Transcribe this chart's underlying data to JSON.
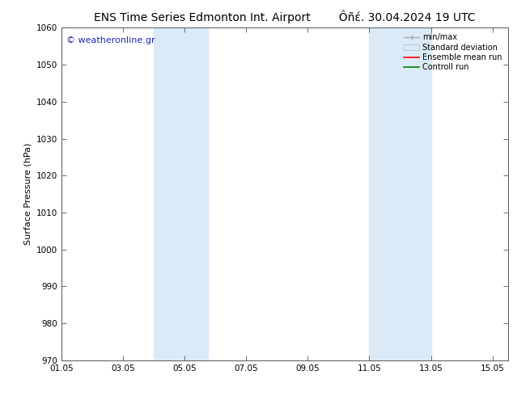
{
  "title_left": "ENS Time Series Edmonton Int. Airport",
  "title_right": "Ôñέ. 30.04.2024 19 UTC",
  "ylabel": "Surface Pressure (hPa)",
  "ylim": [
    970,
    1060
  ],
  "yticks": [
    970,
    980,
    990,
    1000,
    1010,
    1020,
    1030,
    1040,
    1050,
    1060
  ],
  "xlim_start": 0,
  "xlim_end": 14.5,
  "xtick_positions": [
    0,
    2,
    4,
    6,
    8,
    10,
    12,
    14
  ],
  "xtick_labels": [
    "01.05",
    "03.05",
    "05.05",
    "07.05",
    "09.05",
    "11.05",
    "13.05",
    "15.05"
  ],
  "shaded_bands": [
    {
      "xmin": 3.0,
      "xmax": 4.75
    },
    {
      "xmin": 10.0,
      "xmax": 12.0
    }
  ],
  "band_color": "#daeaf7",
  "watermark_text": "© weatheronline.gr",
  "watermark_color": "#2222bb",
  "legend_items": [
    {
      "label": "min/max"
    },
    {
      "label": "Standard deviation"
    },
    {
      "label": "Ensemble mean run"
    },
    {
      "label": "Controll run"
    }
  ],
  "bg_color": "#ffffff",
  "spine_color": "#555555",
  "title_fontsize": 10,
  "label_fontsize": 8,
  "tick_fontsize": 7.5,
  "watermark_fontsize": 8,
  "legend_fontsize": 7
}
